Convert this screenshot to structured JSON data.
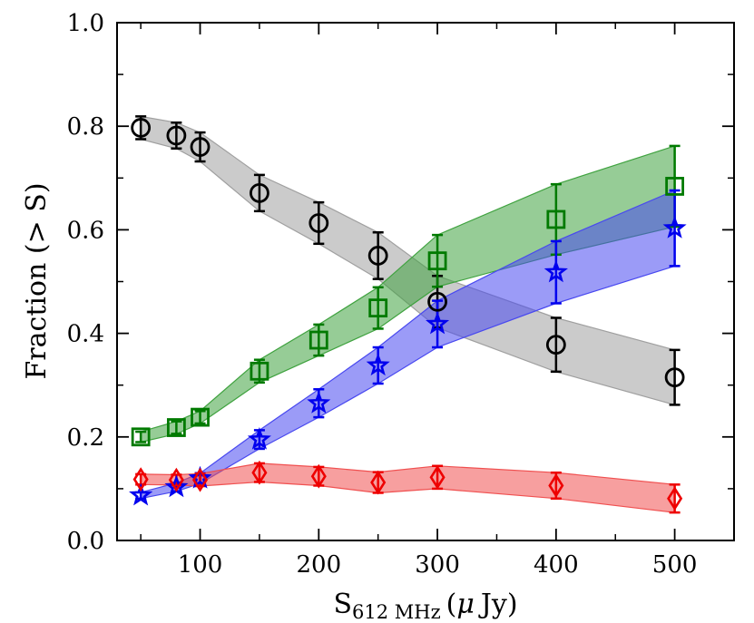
{
  "chart_data": {
    "type": "line",
    "title": "",
    "xlabel": {
      "main": "S",
      "sub": "612 MHz",
      "unit_open": "(",
      "mu": "μ",
      "unit": "Jy",
      "unit_close": ")"
    },
    "ylabel": "Fraction (> S)",
    "xlim": [
      30,
      550
    ],
    "ylim": [
      0.0,
      1.0
    ],
    "xticks": [
      100,
      200,
      300,
      400,
      500
    ],
    "xtick_labels": [
      "100",
      "200",
      "300",
      "400",
      "500"
    ],
    "yticks": [
      0.0,
      0.2,
      0.4,
      0.6,
      0.8,
      1.0
    ],
    "ytick_labels": [
      "0.0",
      "0.2",
      "0.4",
      "0.6",
      "0.8",
      "1.0"
    ],
    "x": [
      50,
      80,
      100,
      150,
      200,
      250,
      300,
      400,
      500
    ],
    "series": [
      {
        "name": "black-circles",
        "color": "#000000",
        "fill": "#a0a0a0",
        "marker": "circle",
        "values": [
          0.797,
          0.782,
          0.76,
          0.671,
          0.613,
          0.55,
          0.461,
          0.378,
          0.315
        ],
        "err": [
          0.022,
          0.025,
          0.028,
          0.035,
          0.04,
          0.045,
          0.05,
          0.052,
          0.053
        ],
        "band_lower": [
          0.775,
          0.757,
          0.732,
          0.636,
          0.573,
          0.505,
          0.411,
          0.326,
          0.262
        ],
        "band_upper": [
          0.819,
          0.807,
          0.788,
          0.706,
          0.653,
          0.595,
          0.511,
          0.43,
          0.368
        ]
      },
      {
        "name": "green-squares",
        "color": "#007a00",
        "fill": "#3fa23f",
        "marker": "square",
        "values": [
          0.2,
          0.218,
          0.238,
          0.327,
          0.387,
          0.449,
          0.54,
          0.62,
          0.684
        ],
        "err": [
          0.01,
          0.012,
          0.012,
          0.022,
          0.03,
          0.04,
          0.05,
          0.068,
          0.078
        ],
        "band_lower": [
          0.19,
          0.206,
          0.226,
          0.305,
          0.357,
          0.409,
          0.49,
          0.552,
          0.606
        ],
        "band_upper": [
          0.21,
          0.23,
          0.25,
          0.349,
          0.417,
          0.489,
          0.59,
          0.688,
          0.762
        ]
      },
      {
        "name": "blue-stars",
        "color": "#0000ee",
        "fill": "#4848f0",
        "marker": "star",
        "values": [
          0.087,
          0.103,
          0.12,
          0.195,
          0.265,
          0.338,
          0.418,
          0.518,
          0.603
        ],
        "err": [
          0.006,
          0.008,
          0.01,
          0.018,
          0.027,
          0.035,
          0.045,
          0.06,
          0.073
        ],
        "band_lower": [
          0.081,
          0.095,
          0.11,
          0.177,
          0.238,
          0.303,
          0.373,
          0.458,
          0.53
        ],
        "band_upper": [
          0.093,
          0.111,
          0.13,
          0.213,
          0.292,
          0.373,
          0.463,
          0.578,
          0.676
        ]
      },
      {
        "name": "red-diamonds",
        "color": "#ee0000",
        "fill": "#f05050",
        "marker": "diamond",
        "values": [
          0.118,
          0.117,
          0.117,
          0.131,
          0.124,
          0.112,
          0.122,
          0.106,
          0.081
        ],
        "err": [
          0.01,
          0.01,
          0.012,
          0.018,
          0.018,
          0.02,
          0.022,
          0.025,
          0.027
        ],
        "band_lower": [
          0.108,
          0.107,
          0.105,
          0.113,
          0.106,
          0.092,
          0.1,
          0.081,
          0.054
        ],
        "band_upper": [
          0.128,
          0.127,
          0.129,
          0.149,
          0.142,
          0.132,
          0.144,
          0.131,
          0.108
        ]
      }
    ]
  }
}
